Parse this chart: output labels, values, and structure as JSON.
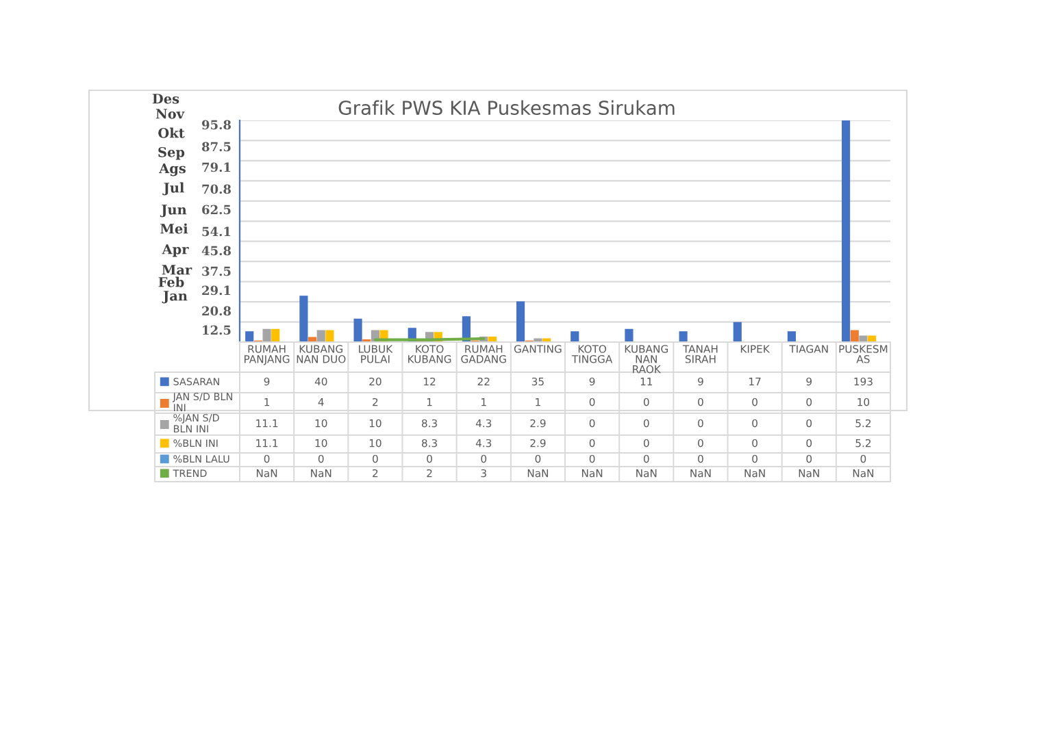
{
  "chart_data": {
    "type": "bar",
    "title": "Grafik PWS KIA Puskesmas Sirukam",
    "categories": [
      "RUMAH\nPANJANG",
      "KUBANG\nNAN DUO",
      "LUBUK\nPULAI",
      "KOTO\nKUBANG",
      "RUMAH\nGADANG",
      "GANTING",
      "KOTO\nTINGGA",
      "KUBANG\nNAN\nRAOK",
      "TANAH\nSIRAH",
      "KIPEK",
      "TIAGAN",
      "PUSKESM\nAS"
    ],
    "legend": "bottom left",
    "series": [
      {
        "name": "SASARAN",
        "color": "#4472c4",
        "values": [
          9,
          40,
          20,
          12,
          22,
          35,
          9,
          11,
          9,
          17,
          9,
          193
        ],
        "value_labels": [
          "9",
          "40",
          "20",
          "12",
          "22",
          "35",
          "9",
          "11",
          "9",
          "17",
          "9",
          "193"
        ]
      },
      {
        "name": "JAN S/D BLN\nINI",
        "color": "#ed7d31",
        "values": [
          1,
          4,
          2,
          1,
          1,
          1,
          0,
          0,
          0,
          0,
          0,
          10
        ],
        "value_labels": [
          "1",
          "4",
          "2",
          "1",
          "1",
          "1",
          "0",
          "0",
          "0",
          "0",
          "0",
          "10"
        ]
      },
      {
        "name": "%JAN S/D\nBLN INI",
        "color": "#a5a5a5",
        "values": [
          11.1,
          10,
          10,
          8.3,
          4.3,
          2.9,
          0,
          0,
          0,
          0,
          0,
          5.2
        ],
        "value_labels": [
          "11.1",
          "10",
          "10",
          "8.3",
          "4.3",
          "2.9",
          "0",
          "0",
          "0",
          "0",
          "0",
          "5.2"
        ]
      },
      {
        "name": "%BLN INI",
        "color": "#ffc000",
        "values": [
          11.1,
          10,
          10,
          8.3,
          4.3,
          2.9,
          0,
          0,
          0,
          0,
          0,
          5.2
        ],
        "value_labels": [
          "11.1",
          "10",
          "10",
          "8.3",
          "4.3",
          "2.9",
          "0",
          "0",
          "0",
          "0",
          "0",
          "5.2"
        ]
      },
      {
        "name": "%BLN LALU",
        "color": "#5b9bd5",
        "values": [
          0,
          0,
          0,
          0,
          0,
          0,
          0,
          0,
          0,
          0,
          0,
          0
        ],
        "value_labels": [
          "0",
          "0",
          "0",
          "0",
          "0",
          "0",
          "0",
          "0",
          "0",
          "0",
          "0",
          "0"
        ]
      },
      {
        "name": "TREND",
        "type": "line",
        "color": "#70ad47",
        "values": [
          null,
          null,
          2,
          2,
          3,
          null,
          null,
          null,
          null,
          null,
          null,
          null
        ],
        "value_labels": [
          "NaN",
          "NaN",
          "2",
          "2",
          "3",
          "NaN",
          "NaN",
          "NaN",
          "NaN",
          "NaN",
          "NaN",
          "NaN"
        ]
      }
    ],
    "grid": "y",
    "tick_labels": false,
    "annotations": [
      "Des",
      "Nov",
      "Okt",
      "Sep",
      "Ags",
      "Jul",
      "Jun",
      "Mei",
      "Apr",
      "Mar",
      "Feb",
      "Jan",
      "95.8",
      "87.5",
      "79.1",
      "70.8",
      "62.5",
      "54.1",
      "45.8",
      "37.5",
      "29.1",
      "20.8",
      "12.5"
    ]
  }
}
